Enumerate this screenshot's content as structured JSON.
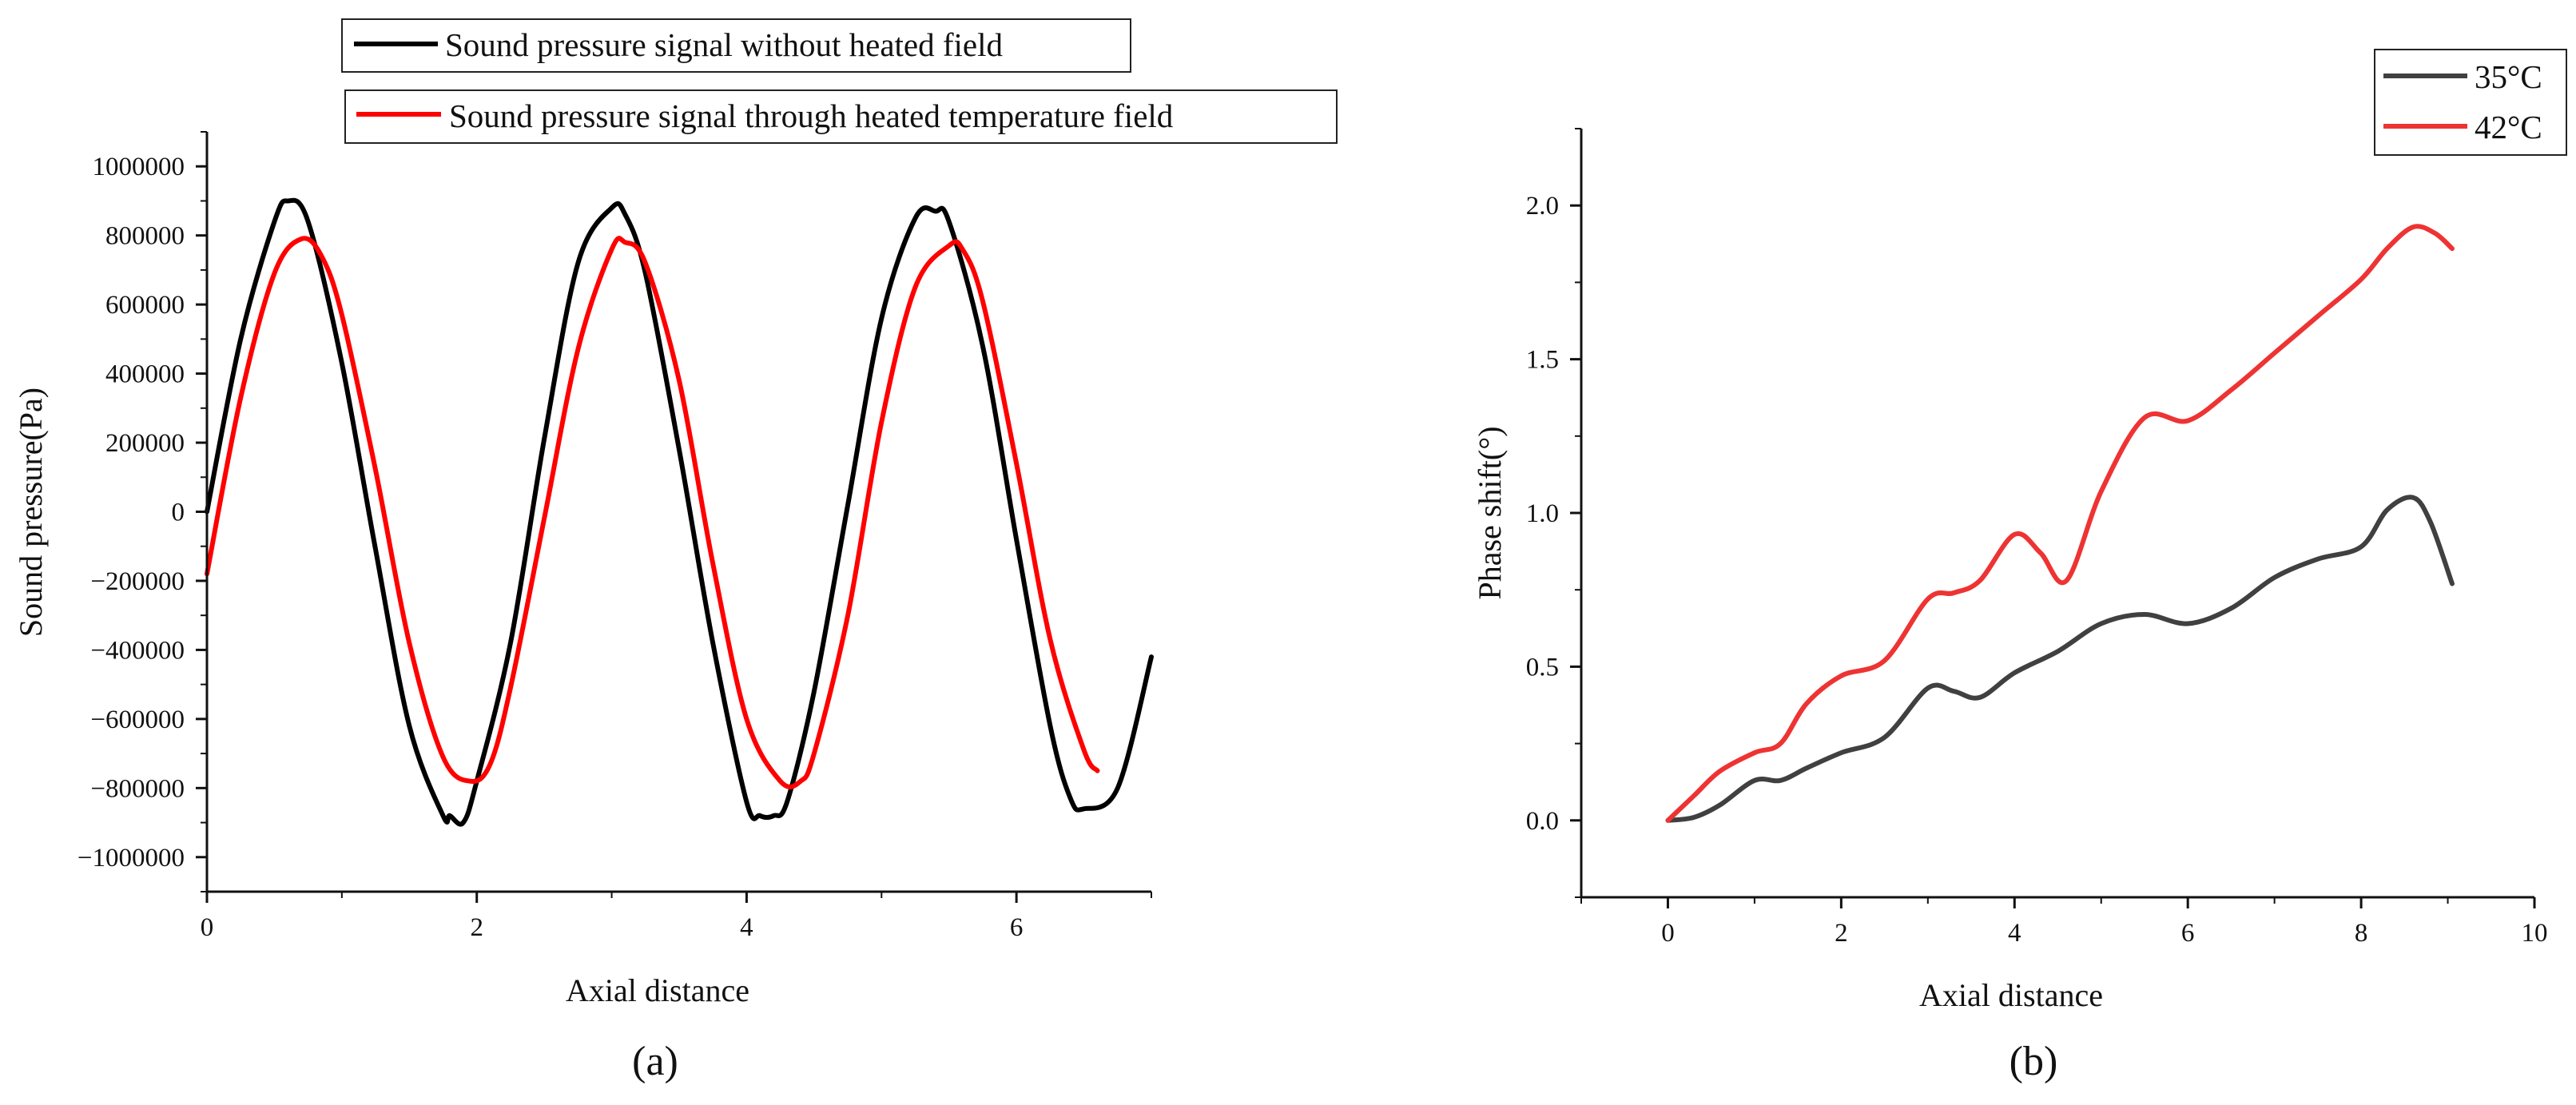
{
  "chart_data": [
    {
      "panel_label": "(a)",
      "type": "line",
      "title": "",
      "xlabel": "Axial distance",
      "ylabel": "Sound pressure(Pa)",
      "xlim": [
        0,
        7
      ],
      "ylim": [
        -1100000,
        1100000
      ],
      "xticks": [
        0,
        2,
        4,
        6
      ],
      "xtick_labels": [
        "0",
        "2",
        "4",
        "6"
      ],
      "yticks": [
        1000000,
        800000,
        600000,
        400000,
        200000,
        0,
        -200000,
        -400000,
        -600000,
        -800000,
        -1000000
      ],
      "ytick_labels": [
        "1000000",
        "800000",
        "600000",
        "400000",
        "200000",
        "0",
        "-200000",
        "-400000",
        "-600000",
        "-800000",
        "-1000000"
      ],
      "legend_position": "top, outside, stacked boxes",
      "series": [
        {
          "name": "Sound pressure signal without heated field",
          "color": "#000000",
          "x": [
            0,
            0.25,
            0.5,
            0.6,
            0.75,
            1.0,
            1.25,
            1.5,
            1.75,
            1.8,
            1.9,
            2.0,
            2.25,
            2.5,
            2.75,
            3.0,
            3.1,
            3.25,
            3.5,
            3.75,
            4.0,
            4.1,
            4.2,
            4.3,
            4.5,
            4.75,
            5.0,
            5.25,
            5.4,
            5.5,
            5.75,
            6.0,
            6.25,
            6.4,
            6.5,
            6.75,
            7.0
          ],
          "y": [
            0,
            500000,
            840000,
            900000,
            840000,
            430000,
            -110000,
            -620000,
            -880000,
            -880000,
            -900000,
            -780000,
            -380000,
            210000,
            720000,
            880000,
            860000,
            690000,
            180000,
            -380000,
            -840000,
            -880000,
            -880000,
            -840000,
            -520000,
            20000,
            560000,
            850000,
            870000,
            840000,
            480000,
            -80000,
            -620000,
            -830000,
            -860000,
            -800000,
            -420000
          ]
        },
        {
          "name": "Sound pressure signal through heated temperature field",
          "color": "#ff0000",
          "x": [
            0,
            0.25,
            0.5,
            0.7,
            0.85,
            1.0,
            1.25,
            1.5,
            1.75,
            1.95,
            2.1,
            2.25,
            2.5,
            2.75,
            3.0,
            3.1,
            3.25,
            3.5,
            3.75,
            4.0,
            4.25,
            4.4,
            4.5,
            4.75,
            5.0,
            5.25,
            5.5,
            5.6,
            5.75,
            6.0,
            6.25,
            6.5,
            6.6
          ],
          "y": [
            -180000,
            330000,
            690000,
            790000,
            740000,
            570000,
            120000,
            -380000,
            -710000,
            -780000,
            -730000,
            -510000,
            -20000,
            470000,
            760000,
            780000,
            720000,
            380000,
            -150000,
            -600000,
            -780000,
            -780000,
            -700000,
            -300000,
            260000,
            650000,
            770000,
            760000,
            610000,
            140000,
            -370000,
            -690000,
            -750000
          ]
        }
      ]
    },
    {
      "panel_label": "(b)",
      "type": "line",
      "title": "",
      "xlabel": "Axial distance",
      "ylabel": "Phase shift(°)",
      "xlim": [
        -1,
        10
      ],
      "ylim": [
        -0.25,
        2.25
      ],
      "xticks": [
        0,
        2,
        4,
        6,
        8,
        10
      ],
      "xtick_labels": [
        "0",
        "2",
        "4",
        "6",
        "8",
        "10"
      ],
      "yticks": [
        0.0,
        0.5,
        1.0,
        1.5,
        2.0
      ],
      "ytick_labels": [
        "0.0",
        "0.5",
        "1.0",
        "1.5",
        "2.0"
      ],
      "legend_position": "top-right",
      "series": [
        {
          "name": "35°C",
          "color": "#404040",
          "x": [
            0,
            0.3,
            0.6,
            1.0,
            1.3,
            1.6,
            2.0,
            2.5,
            3.0,
            3.3,
            3.6,
            4.0,
            4.5,
            5.0,
            5.5,
            6.0,
            6.5,
            7.0,
            7.5,
            8.0,
            8.3,
            8.6,
            8.8,
            9.05
          ],
          "y": [
            0.0,
            0.01,
            0.05,
            0.13,
            0.13,
            0.17,
            0.22,
            0.27,
            0.43,
            0.42,
            0.4,
            0.48,
            0.55,
            0.64,
            0.67,
            0.64,
            0.69,
            0.79,
            0.85,
            0.89,
            1.01,
            1.05,
            0.97,
            0.77
          ]
        },
        {
          "name": "42°C",
          "color": "#ee3333",
          "x": [
            0,
            0.3,
            0.6,
            1.0,
            1.3,
            1.6,
            2.0,
            2.5,
            3.0,
            3.3,
            3.6,
            4.0,
            4.3,
            4.6,
            5.0,
            5.5,
            6.0,
            6.5,
            7.0,
            7.5,
            8.0,
            8.3,
            8.6,
            8.85,
            9.05
          ],
          "y": [
            0.0,
            0.08,
            0.16,
            0.22,
            0.25,
            0.38,
            0.47,
            0.52,
            0.72,
            0.74,
            0.78,
            0.93,
            0.87,
            0.78,
            1.07,
            1.31,
            1.3,
            1.4,
            1.52,
            1.64,
            1.76,
            1.86,
            1.93,
            1.91,
            1.86
          ]
        }
      ]
    }
  ]
}
